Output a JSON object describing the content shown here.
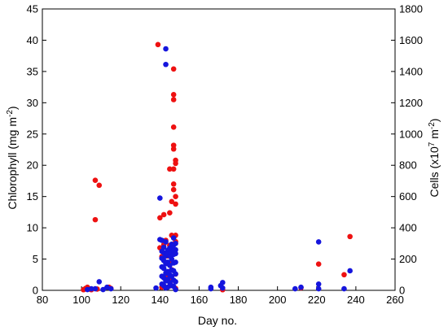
{
  "chart_data": {
    "type": "scatter",
    "xlabel": "Day no.",
    "ylabel_left": {
      "main": "Chlorophyll (mg m",
      "sup": "-2",
      "end": ")"
    },
    "ylabel_right": {
      "main": "Cells (x10",
      "sup1": "7",
      "mid": " m",
      "sup2": "-2",
      "end": ")"
    },
    "xlim": [
      80,
      260
    ],
    "xticks": [
      80,
      100,
      120,
      140,
      160,
      180,
      200,
      220,
      240,
      260
    ],
    "ylim_left": [
      0,
      45
    ],
    "yticks_left": [
      0,
      5,
      10,
      15,
      20,
      25,
      30,
      35,
      40,
      45
    ],
    "ylim_right": [
      0,
      1800
    ],
    "yticks_right": [
      0,
      200,
      400,
      600,
      800,
      1000,
      1200,
      1400,
      1600,
      1800
    ],
    "grid": false,
    "series": [
      {
        "axis": "left",
        "color": "#ee1111",
        "points": [
          [
            101,
            0.1
          ],
          [
            102,
            0.3
          ],
          [
            103,
            0.5
          ],
          [
            104,
            0.2
          ],
          [
            105,
            0.1
          ],
          [
            107,
            17.6
          ],
          [
            107,
            11.3
          ],
          [
            109,
            16.8
          ],
          [
            108,
            0.2
          ],
          [
            114,
            0.5
          ],
          [
            115,
            0.3
          ],
          [
            139,
            39.3
          ],
          [
            140,
            11.6
          ],
          [
            140,
            6.8
          ],
          [
            141,
            5.4
          ],
          [
            141,
            0.5
          ],
          [
            142,
            12.1
          ],
          [
            142,
            7.3
          ],
          [
            143,
            8.0
          ],
          [
            143,
            4.5
          ],
          [
            144,
            5.5
          ],
          [
            144,
            2.5
          ],
          [
            145,
            19.4
          ],
          [
            145,
            12.4
          ],
          [
            145,
            7.2
          ],
          [
            145,
            0.7
          ],
          [
            146,
            14.2
          ],
          [
            146,
            8.8
          ],
          [
            146,
            6.5
          ],
          [
            146,
            4.4
          ],
          [
            146,
            3.3
          ],
          [
            146,
            1.6
          ],
          [
            147,
            35.4
          ],
          [
            147,
            31.3
          ],
          [
            147,
            30.5
          ],
          [
            147,
            26.1
          ],
          [
            147,
            23.2
          ],
          [
            147,
            22.6
          ],
          [
            147,
            19.4
          ],
          [
            147,
            17.0
          ],
          [
            147,
            16.1
          ],
          [
            148,
            20.8
          ],
          [
            148,
            20.3
          ],
          [
            148,
            15.0
          ],
          [
            148,
            13.8
          ],
          [
            148,
            8.8
          ],
          [
            148,
            7.8
          ],
          [
            148,
            2.6
          ],
          [
            148,
            0.3
          ],
          [
            172,
            0.1
          ],
          [
            212,
            0.4
          ],
          [
            221,
            4.2
          ],
          [
            234,
            2.5
          ],
          [
            237,
            8.6
          ]
        ]
      },
      {
        "axis": "right",
        "color": "#1515dd",
        "points": [
          [
            103,
            5
          ],
          [
            105,
            10
          ],
          [
            107,
            10
          ],
          [
            109,
            55
          ],
          [
            111,
            5
          ],
          [
            113,
            20
          ],
          [
            115,
            10
          ],
          [
            138,
            15
          ],
          [
            140,
            590
          ],
          [
            140,
            325
          ],
          [
            141,
            320
          ],
          [
            141,
            250
          ],
          [
            141,
            205
          ],
          [
            141,
            150
          ],
          [
            141,
            90
          ],
          [
            141,
            40
          ],
          [
            142,
            275
          ],
          [
            142,
            240
          ],
          [
            142,
            190
          ],
          [
            142,
            140
          ],
          [
            142,
            80
          ],
          [
            142,
            30
          ],
          [
            143,
            1545
          ],
          [
            143,
            1445
          ],
          [
            143,
            310
          ],
          [
            143,
            220
          ],
          [
            143,
            170
          ],
          [
            143,
            110
          ],
          [
            143,
            60
          ],
          [
            143,
            15
          ],
          [
            144,
            255
          ],
          [
            144,
            230
          ],
          [
            144,
            180
          ],
          [
            144,
            120
          ],
          [
            144,
            70
          ],
          [
            144,
            20
          ],
          [
            145,
            270
          ],
          [
            145,
            220
          ],
          [
            145,
            160
          ],
          [
            145,
            100
          ],
          [
            145,
            50
          ],
          [
            146,
            295
          ],
          [
            146,
            265
          ],
          [
            146,
            245
          ],
          [
            146,
            200
          ],
          [
            146,
            130
          ],
          [
            146,
            90
          ],
          [
            146,
            30
          ],
          [
            147,
            335
          ],
          [
            147,
            290
          ],
          [
            147,
            255
          ],
          [
            147,
            230
          ],
          [
            147,
            175
          ],
          [
            147,
            125
          ],
          [
            147,
            65
          ],
          [
            147,
            25
          ],
          [
            148,
            300
          ],
          [
            148,
            260
          ],
          [
            148,
            235
          ],
          [
            148,
            180
          ],
          [
            148,
            105
          ],
          [
            148,
            55
          ],
          [
            148,
            5
          ],
          [
            166,
            10
          ],
          [
            166,
            20
          ],
          [
            171,
            30
          ],
          [
            172,
            50
          ],
          [
            172,
            15
          ],
          [
            209,
            10
          ],
          [
            212,
            20
          ],
          [
            221,
            310
          ],
          [
            221,
            40
          ],
          [
            221,
            10
          ],
          [
            234,
            10
          ],
          [
            237,
            125
          ]
        ]
      }
    ]
  }
}
